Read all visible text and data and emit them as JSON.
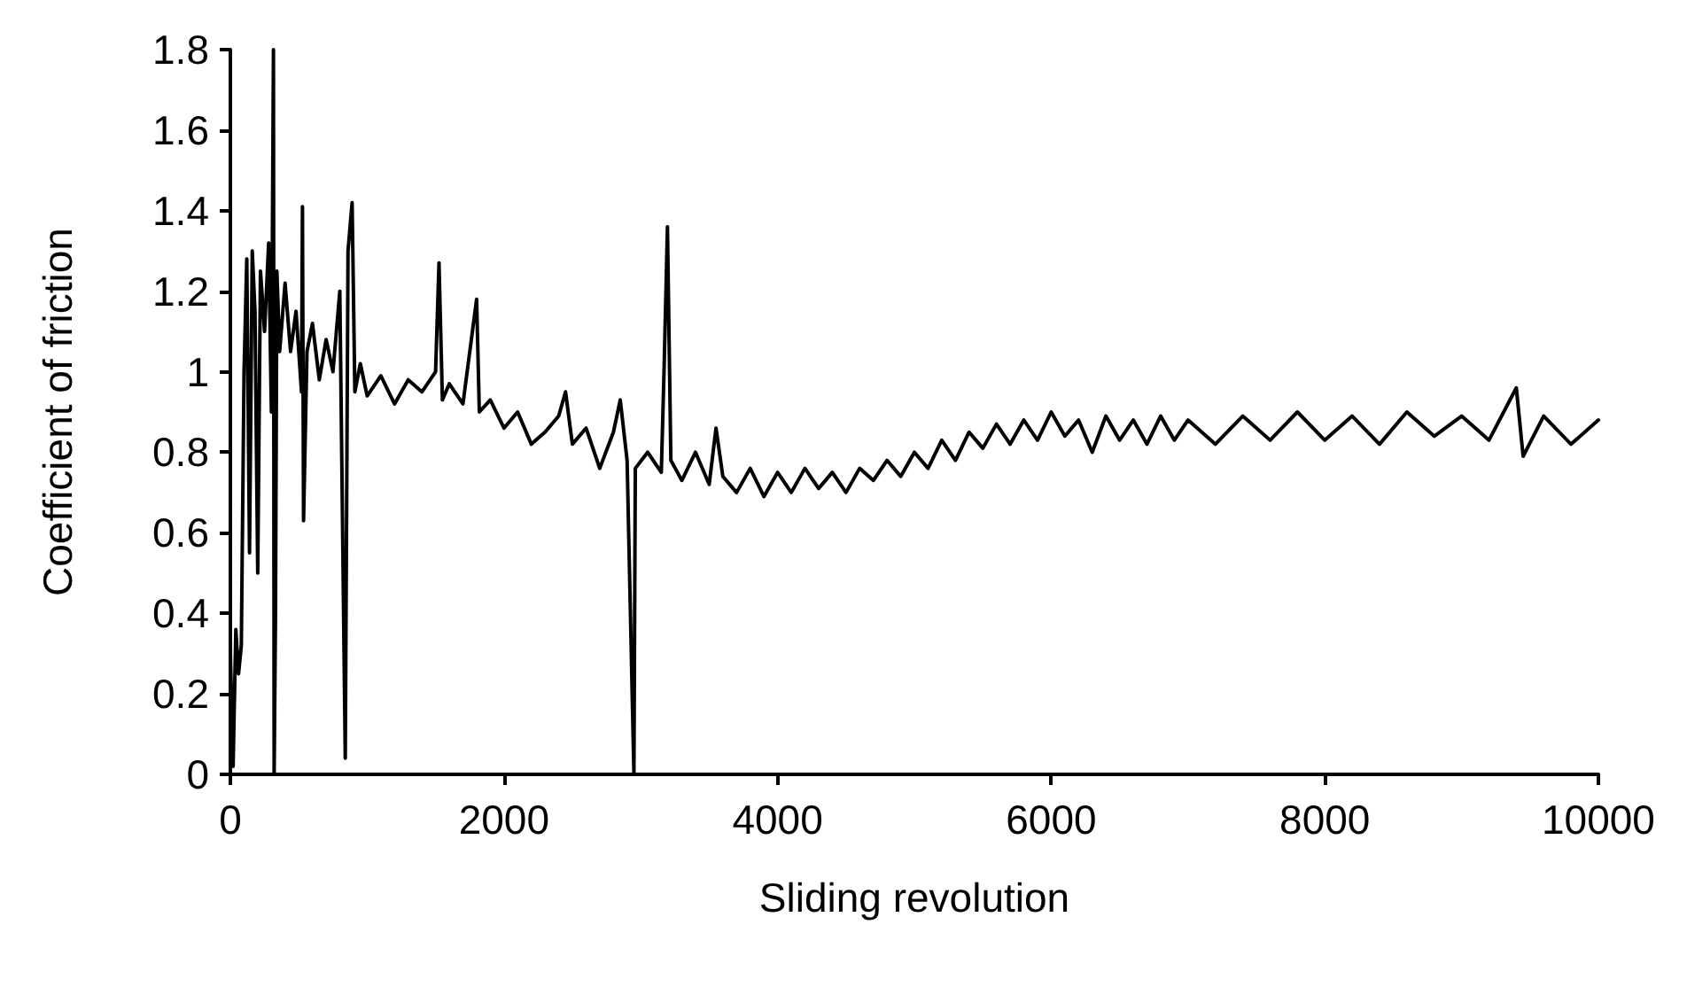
{
  "chart_data": {
    "type": "line",
    "xlabel": "Sliding revolution",
    "ylabel": "Coefficient of friction",
    "x": [
      0,
      20,
      40,
      60,
      80,
      100,
      120,
      140,
      160,
      180,
      200,
      220,
      250,
      280,
      300,
      315,
      320,
      330,
      340,
      360,
      400,
      440,
      480,
      520,
      527,
      535,
      560,
      600,
      650,
      700,
      750,
      800,
      840,
      860,
      890,
      910,
      950,
      1000,
      1100,
      1200,
      1300,
      1400,
      1500,
      1525,
      1550,
      1600,
      1700,
      1800,
      1820,
      1900,
      2000,
      2100,
      2200,
      2300,
      2400,
      2450,
      2500,
      2600,
      2700,
      2800,
      2850,
      2900,
      2950,
      2960,
      3050,
      3150,
      3170,
      3195,
      3220,
      3300,
      3400,
      3500,
      3550,
      3600,
      3700,
      3800,
      3900,
      4000,
      4100,
      4200,
      4300,
      4400,
      4500,
      4600,
      4700,
      4800,
      4900,
      5000,
      5100,
      5200,
      5300,
      5400,
      5500,
      5600,
      5700,
      5800,
      5900,
      6000,
      6100,
      6200,
      6300,
      6400,
      6500,
      6600,
      6700,
      6800,
      6900,
      7000,
      7200,
      7400,
      7600,
      7800,
      8000,
      8200,
      8400,
      8600,
      8800,
      9000,
      9200,
      9400,
      9450,
      9600,
      9800,
      10000
    ],
    "series": [
      {
        "color": "#000000",
        "values": [
          0.3,
          0.02,
          0.36,
          0.25,
          0.32,
          1.0,
          1.28,
          0.55,
          1.3,
          1.15,
          0.5,
          1.25,
          1.1,
          1.32,
          0.9,
          1.8,
          0.0,
          0.4,
          1.25,
          1.05,
          1.22,
          1.05,
          1.15,
          0.95,
          1.41,
          0.63,
          1.05,
          1.12,
          0.98,
          1.08,
          1.0,
          1.2,
          0.04,
          1.3,
          1.42,
          0.95,
          1.02,
          0.94,
          0.99,
          0.92,
          0.98,
          0.95,
          1.0,
          1.27,
          0.93,
          0.97,
          0.92,
          1.18,
          0.9,
          0.93,
          0.86,
          0.9,
          0.82,
          0.85,
          0.89,
          0.95,
          0.82,
          0.86,
          0.76,
          0.85,
          0.93,
          0.78,
          0.0,
          0.76,
          0.8,
          0.75,
          1.0,
          1.36,
          0.78,
          0.73,
          0.8,
          0.72,
          0.86,
          0.74,
          0.7,
          0.76,
          0.69,
          0.75,
          0.7,
          0.76,
          0.71,
          0.75,
          0.7,
          0.76,
          0.73,
          0.78,
          0.74,
          0.8,
          0.76,
          0.83,
          0.78,
          0.85,
          0.81,
          0.87,
          0.82,
          0.88,
          0.83,
          0.9,
          0.84,
          0.88,
          0.8,
          0.89,
          0.83,
          0.88,
          0.82,
          0.89,
          0.83,
          0.88,
          0.82,
          0.89,
          0.83,
          0.9,
          0.83,
          0.89,
          0.82,
          0.9,
          0.84,
          0.89,
          0.83,
          0.96,
          0.79,
          0.89,
          0.82,
          0.88
        ]
      }
    ],
    "xlim": [
      0,
      10000
    ],
    "xticks": [
      0,
      2000,
      4000,
      6000,
      8000,
      10000
    ],
    "ylim": [
      0,
      1.8
    ],
    "yticks": [
      0,
      0.2,
      0.4,
      0.6,
      0.8,
      1,
      1.2,
      1.4,
      1.6,
      1.8
    ],
    "marker": "none",
    "line_style": "solid"
  }
}
